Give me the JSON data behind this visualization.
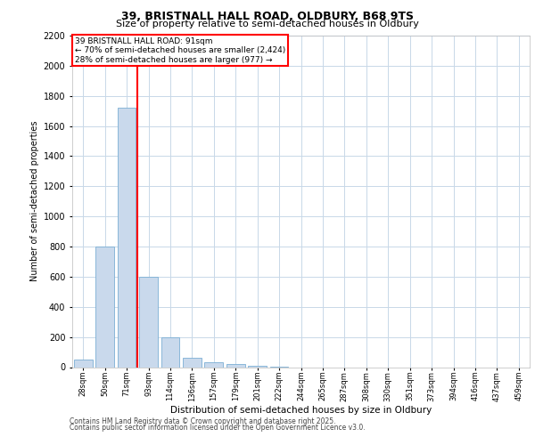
{
  "title_line1": "39, BRISTNALL HALL ROAD, OLDBURY, B68 9TS",
  "title_line2": "Size of property relative to semi-detached houses in Oldbury",
  "xlabel": "Distribution of semi-detached houses by size in Oldbury",
  "ylabel": "Number of semi-detached properties",
  "bar_labels": [
    "28sqm",
    "50sqm",
    "71sqm",
    "93sqm",
    "114sqm",
    "136sqm",
    "157sqm",
    "179sqm",
    "201sqm",
    "222sqm",
    "244sqm",
    "265sqm",
    "287sqm",
    "308sqm",
    "330sqm",
    "351sqm",
    "373sqm",
    "394sqm",
    "416sqm",
    "437sqm",
    "459sqm"
  ],
  "bar_values": [
    50,
    800,
    1720,
    600,
    200,
    60,
    30,
    18,
    10,
    5,
    0,
    0,
    0,
    0,
    0,
    0,
    0,
    0,
    0,
    0,
    0
  ],
  "bar_color": "#c9d9ec",
  "bar_edge_color": "#7bafd4",
  "property_size": "91sqm",
  "annotation_title": "39 BRISTNALL HALL ROAD: 91sqm",
  "annotation_line2": "← 70% of semi-detached houses are smaller (2,424)",
  "annotation_line3": "28% of semi-detached houses are larger (977) →",
  "annotation_box_color": "#ff0000",
  "ylim": [
    0,
    2200
  ],
  "yticks": [
    0,
    200,
    400,
    600,
    800,
    1000,
    1200,
    1400,
    1600,
    1800,
    2000,
    2200
  ],
  "background_color": "#ffffff",
  "grid_color": "#c8d8e8",
  "footer_line1": "Contains HM Land Registry data © Crown copyright and database right 2025.",
  "footer_line2": "Contains public sector information licensed under the Open Government Licence v3.0."
}
